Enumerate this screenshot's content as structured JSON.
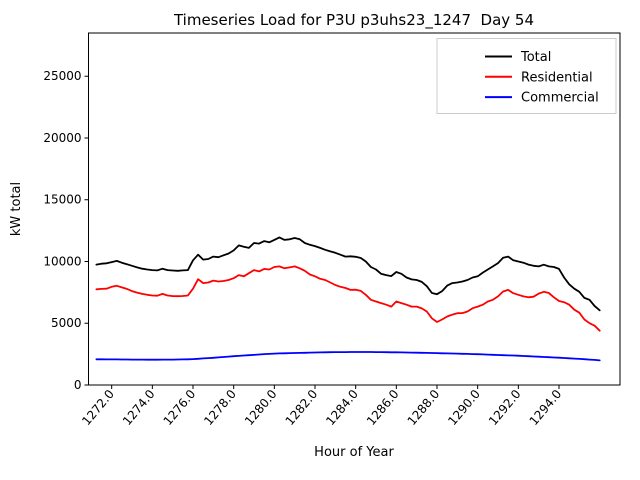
{
  "title": "Timeseries Load for P3U p3uhs23_1247  Day 54",
  "chart_data": {
    "type": "line",
    "title": "Timeseries Load for P3U p3uhs23_1247  Day 54",
    "xlabel": "Hour of Year",
    "ylabel": "kW total",
    "xlim": [
      1270.86,
      1297.0
    ],
    "ylim": [
      0,
      28500
    ],
    "grid": false,
    "legend_position": "upper right",
    "x_tick_rotation_deg": 50,
    "x_ticks": [
      1272,
      1274,
      1276,
      1278,
      1280,
      1282,
      1284,
      1286,
      1288,
      1290,
      1292,
      1294
    ],
    "x_tick_labels": [
      "1272.0",
      "1274.0",
      "1276.0",
      "1278.0",
      "1280.0",
      "1282.0",
      "1284.0",
      "1286.0",
      "1288.0",
      "1290.0",
      "1292.0",
      "1294.0"
    ],
    "y_ticks": [
      0,
      5000,
      10000,
      15000,
      20000,
      25000
    ],
    "y_tick_labels": [
      "0",
      "5000",
      "10000",
      "15000",
      "20000",
      "25000"
    ],
    "x_start": 1271.25,
    "x_step": 0.25,
    "n_points": 100,
    "hours": [
      1271.25,
      1271.5,
      1271.75,
      1272.0,
      1272.25,
      1272.5,
      1272.75,
      1273.0,
      1273.25,
      1273.5,
      1273.75,
      1274.0,
      1274.25,
      1274.5,
      1274.75,
      1275.0,
      1275.25,
      1275.5,
      1275.75,
      1276.0,
      1276.25,
      1276.5,
      1276.75,
      1277.0,
      1277.25,
      1277.5,
      1277.75,
      1278.0,
      1278.25,
      1278.5,
      1278.75,
      1279.0,
      1279.25,
      1279.5,
      1279.75,
      1280.0,
      1280.25,
      1280.5,
      1280.75,
      1281.0,
      1281.25,
      1281.5,
      1281.75,
      1282.0,
      1282.25,
      1282.5,
      1282.75,
      1283.0,
      1283.25,
      1283.5,
      1283.75,
      1284.0,
      1284.25,
      1284.5,
      1284.75,
      1285.0,
      1285.25,
      1285.5,
      1285.75,
      1286.0,
      1286.25,
      1286.5,
      1286.75,
      1287.0,
      1287.25,
      1287.5,
      1287.75,
      1288.0,
      1288.25,
      1288.5,
      1288.75,
      1289.0,
      1289.25,
      1289.5,
      1289.75,
      1290.0,
      1290.25,
      1290.5,
      1290.75,
      1291.0,
      1291.25,
      1291.5,
      1291.75,
      1292.0,
      1292.25,
      1292.5,
      1292.75,
      1293.0,
      1293.25,
      1293.5,
      1293.75,
      1294.0,
      1294.25,
      1294.5,
      1294.75,
      1295.0,
      1295.25,
      1295.5,
      1295.75,
      1296.0
    ],
    "series": [
      {
        "name": "Total",
        "color": "#000000",
        "values": [
          9750,
          9820,
          9850,
          9950,
          10050,
          9900,
          9780,
          9650,
          9520,
          9420,
          9350,
          9300,
          9280,
          9420,
          9300,
          9270,
          9250,
          9280,
          9300,
          10100,
          10550,
          10150,
          10200,
          10400,
          10350,
          10500,
          10650,
          10900,
          11300,
          11200,
          11100,
          11500,
          11450,
          11650,
          11550,
          11750,
          11950,
          11750,
          11800,
          11900,
          11800,
          11500,
          11350,
          11250,
          11100,
          10950,
          10820,
          10700,
          10550,
          10400,
          10420,
          10380,
          10280,
          10000,
          9550,
          9350,
          9000,
          8900,
          8820,
          9150,
          9000,
          8700,
          8550,
          8500,
          8350,
          8000,
          7450,
          7350,
          7600,
          8050,
          8250,
          8300,
          8380,
          8500,
          8700,
          8800,
          9100,
          9350,
          9600,
          9870,
          10300,
          10400,
          10100,
          10000,
          9900,
          9750,
          9650,
          9600,
          9740,
          9600,
          9550,
          9400,
          8700,
          8150,
          7800,
          7550,
          7050,
          6900,
          6400,
          6050
        ]
      },
      {
        "name": "Residential",
        "color": "#ff0000",
        "values": [
          7750,
          7780,
          7800,
          7950,
          8030,
          7900,
          7780,
          7600,
          7480,
          7380,
          7300,
          7250,
          7230,
          7380,
          7250,
          7200,
          7190,
          7210,
          7250,
          7800,
          8570,
          8250,
          8300,
          8450,
          8380,
          8420,
          8500,
          8650,
          8900,
          8800,
          9050,
          9300,
          9200,
          9400,
          9350,
          9550,
          9600,
          9450,
          9520,
          9600,
          9450,
          9250,
          8950,
          8800,
          8600,
          8500,
          8300,
          8100,
          7950,
          7850,
          7700,
          7720,
          7620,
          7300,
          6900,
          6760,
          6630,
          6500,
          6350,
          6760,
          6630,
          6500,
          6350,
          6350,
          6200,
          5950,
          5400,
          5100,
          5300,
          5550,
          5700,
          5810,
          5820,
          5950,
          6220,
          6350,
          6500,
          6760,
          6900,
          7170,
          7570,
          7700,
          7430,
          7300,
          7170,
          7100,
          7150,
          7400,
          7550,
          7450,
          7100,
          6800,
          6700,
          6500,
          6100,
          5850,
          5300,
          5000,
          4800,
          4400
        ]
      },
      {
        "name": "Commercial",
        "color": "#0000ff",
        "values": [
          2080,
          2078,
          2076,
          2075,
          2071,
          2068,
          2064,
          2060,
          2057,
          2055,
          2052,
          2050,
          2052,
          2055,
          2057,
          2060,
          2063,
          2070,
          2083,
          2100,
          2124,
          2150,
          2175,
          2200,
          2235,
          2270,
          2300,
          2330,
          2360,
          2390,
          2415,
          2440,
          2470,
          2500,
          2520,
          2540,
          2555,
          2570,
          2580,
          2590,
          2600,
          2610,
          2620,
          2630,
          2640,
          2650,
          2655,
          2660,
          2663,
          2665,
          2668,
          2670,
          2670,
          2670,
          2668,
          2665,
          2660,
          2655,
          2650,
          2645,
          2638,
          2630,
          2623,
          2615,
          2608,
          2600,
          2590,
          2580,
          2570,
          2560,
          2550,
          2540,
          2528,
          2515,
          2503,
          2490,
          2475,
          2460,
          2445,
          2430,
          2415,
          2400,
          2385,
          2370,
          2350,
          2330,
          2310,
          2290,
          2270,
          2250,
          2230,
          2210,
          2185,
          2160,
          2135,
          2110,
          2085,
          2060,
          2030,
          1990
        ]
      }
    ],
    "legend": {
      "entries": [
        "Total",
        "Residential",
        "Commercial"
      ],
      "colors": [
        "#000000",
        "#ff0000",
        "#0000ff"
      ]
    }
  }
}
